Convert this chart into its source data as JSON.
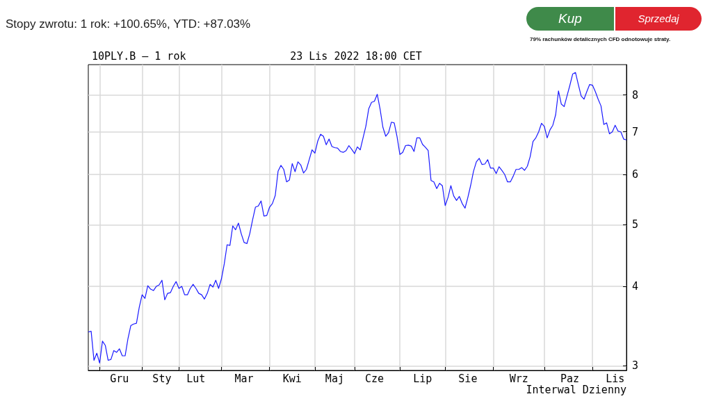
{
  "chart_data": {
    "type": "line",
    "title": "10PLY.B – 1 rok",
    "subtitle": "23 Lis 2022 18:00 CET",
    "annotations": [
      "Stopy zwrotu: 1 rok: +100.65%, YTD: +87.03%",
      "Kup",
      "Sprzedaj",
      "79% rachunków detalicznych CFD odnotowuje straty.",
      "Interwal Dzienny"
    ],
    "log": true,
    "grid": true,
    "marker": "none",
    "line_style": "solid",
    "categories": [
      null,
      null,
      null,
      null,
      null,
      null,
      null,
      null,
      null,
      null,
      null,
      "Gru",
      null,
      null,
      null,
      null,
      null,
      null,
      null,
      null,
      null,
      null,
      null,
      null,
      null,
      null,
      "Sty",
      null,
      null,
      null,
      null,
      null,
      null,
      null,
      null,
      null,
      null,
      null,
      "Lut",
      null,
      null,
      null,
      null,
      null,
      null,
      null,
      null,
      null,
      null,
      null,
      null,
      null,
      null,
      null,
      null,
      "Mar",
      null,
      null,
      null,
      null,
      null,
      null,
      null,
      null,
      null,
      null,
      null,
      null,
      null,
      null,
      null,
      null,
      "Kwi",
      null,
      null,
      null,
      null,
      null,
      null,
      null,
      null,
      null,
      null,
      null,
      null,
      null,
      null,
      "Maj",
      null,
      null,
      null,
      null,
      null,
      null,
      null,
      null,
      null,
      null,
      null,
      null,
      null,
      "Cze",
      null,
      null,
      null,
      null,
      null,
      null,
      null,
      null,
      null,
      null,
      null,
      null,
      null,
      null,
      null,
      null,
      "Lip",
      null,
      null,
      null,
      null,
      null,
      null,
      null,
      null,
      null,
      null,
      null,
      null,
      null,
      null,
      null,
      "Sie",
      null,
      null,
      null,
      null,
      null,
      null,
      null,
      null,
      null,
      null,
      null,
      null,
      null,
      null,
      null,
      null,
      null,
      "Wrz",
      null,
      null,
      null,
      null,
      null,
      null,
      null,
      null,
      null,
      null,
      null,
      null,
      null,
      null,
      null,
      null,
      null,
      "Paz",
      null,
      null,
      null,
      null,
      null,
      null,
      null,
      null,
      null,
      null,
      null,
      null,
      null,
      null,
      null,
      "Lis",
      null,
      null,
      null,
      null
    ],
    "ylim": [
      2.95,
      8.93
    ],
    "yticks": [
      3,
      4,
      5,
      6,
      7,
      8
    ],
    "series": [
      {
        "color": "#1a1aff",
        "values": [
          3.39,
          3.4,
          3.06,
          3.14,
          3.03,
          3.28,
          3.23,
          3.06,
          3.07,
          3.17,
          3.15,
          3.19,
          3.11,
          3.11,
          3.31,
          3.47,
          3.49,
          3.5,
          3.71,
          3.88,
          3.83,
          4.01,
          3.96,
          3.94,
          4.0,
          4.02,
          4.09,
          3.81,
          3.9,
          3.91,
          4.0,
          4.07,
          3.97,
          4.0,
          3.88,
          3.88,
          3.97,
          4.03,
          3.97,
          3.9,
          3.88,
          3.82,
          3.9,
          4.03,
          3.99,
          4.09,
          3.97,
          4.11,
          4.34,
          4.65,
          4.64,
          4.98,
          4.91,
          5.03,
          4.84,
          4.69,
          4.67,
          4.84,
          5.09,
          5.33,
          5.35,
          5.45,
          5.16,
          5.17,
          5.33,
          5.4,
          5.56,
          6.07,
          6.2,
          6.11,
          5.84,
          5.88,
          6.24,
          6.06,
          6.28,
          6.21,
          6.03,
          6.11,
          6.33,
          6.56,
          6.48,
          6.77,
          6.94,
          6.89,
          6.68,
          6.82,
          6.64,
          6.61,
          6.6,
          6.52,
          6.5,
          6.54,
          6.66,
          6.57,
          6.47,
          6.63,
          6.56,
          6.85,
          7.15,
          7.61,
          7.79,
          7.82,
          8.02,
          7.61,
          7.12,
          6.89,
          6.98,
          7.25,
          7.23,
          6.88,
          6.45,
          6.5,
          6.66,
          6.67,
          6.65,
          6.52,
          6.85,
          6.85,
          6.69,
          6.62,
          6.54,
          5.87,
          5.84,
          5.7,
          5.81,
          5.76,
          5.36,
          5.52,
          5.76,
          5.55,
          5.46,
          5.54,
          5.4,
          5.31,
          5.52,
          5.77,
          6.07,
          6.28,
          6.36,
          6.22,
          6.23,
          6.33,
          6.14,
          6.14,
          6.02,
          6.17,
          6.09,
          6.0,
          5.84,
          5.84,
          5.96,
          6.11,
          6.11,
          6.15,
          6.09,
          6.18,
          6.4,
          6.76,
          6.85,
          7.0,
          7.22,
          7.14,
          6.85,
          7.05,
          7.17,
          7.45,
          8.12,
          7.74,
          7.67,
          7.97,
          8.28,
          8.63,
          8.68,
          8.31,
          7.97,
          7.88,
          8.1,
          8.31,
          8.29,
          8.1,
          7.88,
          7.69,
          7.19,
          7.23,
          6.95,
          7.0,
          7.17,
          7.02,
          7.0,
          6.82,
          6.8
        ]
      }
    ]
  }
}
